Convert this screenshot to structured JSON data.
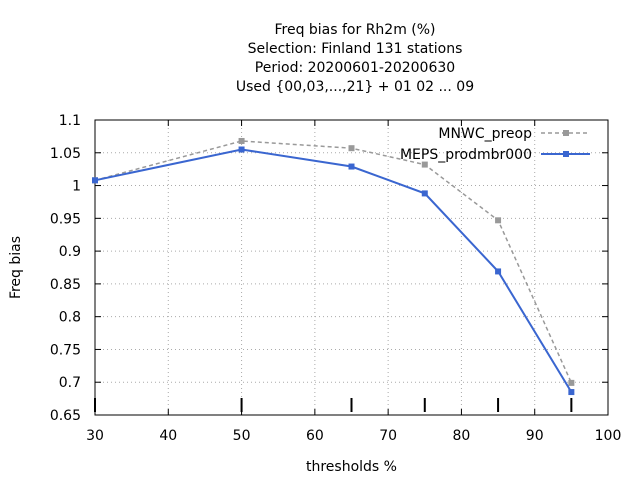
{
  "chart_data": {
    "type": "line",
    "title_lines": [
      "Freq bias  for Rh2m (%)",
      "Selection: Finland     131 stations",
      "Period: 20200601-20200630",
      "Used {00,03,...,21} + 01 02 ... 09"
    ],
    "xlabel": "thresholds %",
    "ylabel": "Freq bias",
    "xlim": [
      30,
      100
    ],
    "ylim": [
      0.65,
      1.1
    ],
    "xticks": [
      30,
      40,
      50,
      60,
      70,
      80,
      90,
      100
    ],
    "xtick_labels": [
      "30",
      "40",
      "50",
      "60",
      "70",
      "80",
      "90",
      "100"
    ],
    "yticks": [
      0.65,
      0.7,
      0.75,
      0.8,
      0.85,
      0.9,
      0.95,
      1.0,
      1.05,
      1.1
    ],
    "ytick_labels": [
      "0.65",
      "0.7",
      "0.75",
      "0.8",
      "0.85",
      "0.9",
      "0.95",
      "1",
      "1.05",
      "1.1"
    ],
    "grid": true,
    "legend_position": "top-right",
    "threshold_marks": [
      30,
      50,
      65,
      75,
      85,
      95
    ],
    "series": [
      {
        "name": "MNWC_preop",
        "color": "#999999",
        "dashed": true,
        "x": [
          30,
          50,
          65,
          75,
          85,
          95
        ],
        "y": [
          1.008,
          1.068,
          1.057,
          1.032,
          0.947,
          0.699
        ]
      },
      {
        "name": "MEPS_prodmbr000",
        "color": "#3a66d0",
        "dashed": false,
        "x": [
          30,
          50,
          65,
          75,
          85,
          95
        ],
        "y": [
          1.008,
          1.055,
          1.029,
          0.988,
          0.869,
          0.685
        ]
      }
    ]
  }
}
